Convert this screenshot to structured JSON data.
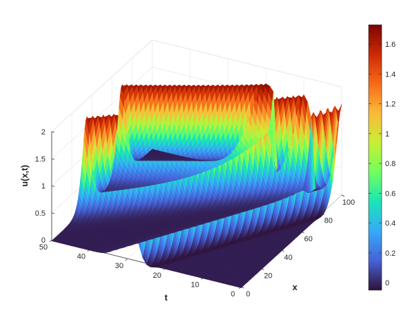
{
  "chart_data": {
    "type": "surface",
    "xlabel": "x",
    "ylabel": "t",
    "zlabel": "u(x,t)",
    "x_ticks": [
      "0",
      "20",
      "40",
      "60",
      "80",
      "100"
    ],
    "t_ticks": [
      "0",
      "10",
      "20",
      "30",
      "40",
      "50"
    ],
    "z_ticks": [
      "0",
      "0.5",
      "1",
      "1.5",
      "2"
    ],
    "xlim": [
      0,
      100
    ],
    "tlim": [
      0,
      50
    ],
    "zlim": [
      0,
      2
    ],
    "grid": true,
    "colormap": "turbo",
    "colorbar": {
      "range": [
        -0.05,
        1.73
      ],
      "ticks": [
        "0",
        "0.2",
        "0.4",
        "0.6",
        "0.8",
        "1",
        "1.2",
        "1.4",
        "1.6"
      ],
      "tick_values": [
        0,
        0.2,
        0.4,
        0.6,
        0.8,
        1,
        1.2,
        1.4,
        1.6
      ],
      "colors": [
        "#30123b",
        "#4662d7",
        "#36aaf9",
        "#1ae4b6",
        "#72fe5e",
        "#c8ef34",
        "#faba39",
        "#f66b19",
        "#cb2a04",
        "#7a0403"
      ]
    },
    "description_series": [
      {
        "name": "",
        "structure": "soliton band from (x=0,t=30) to (x=100,t=0)",
        "peak": 1.7
      },
      {
        "name": "",
        "structure": "soliton band from (x=35,t=50) to (x=100,t=10)",
        "peak": 1.7
      },
      {
        "name": "",
        "structure": "soliton band from (x=70,t=50) to (x=100,t=20)",
        "peak": 1.7
      }
    ]
  },
  "labels": {
    "z_axis": "u(x,t)",
    "t_axis": "t",
    "x_axis": "x"
  }
}
